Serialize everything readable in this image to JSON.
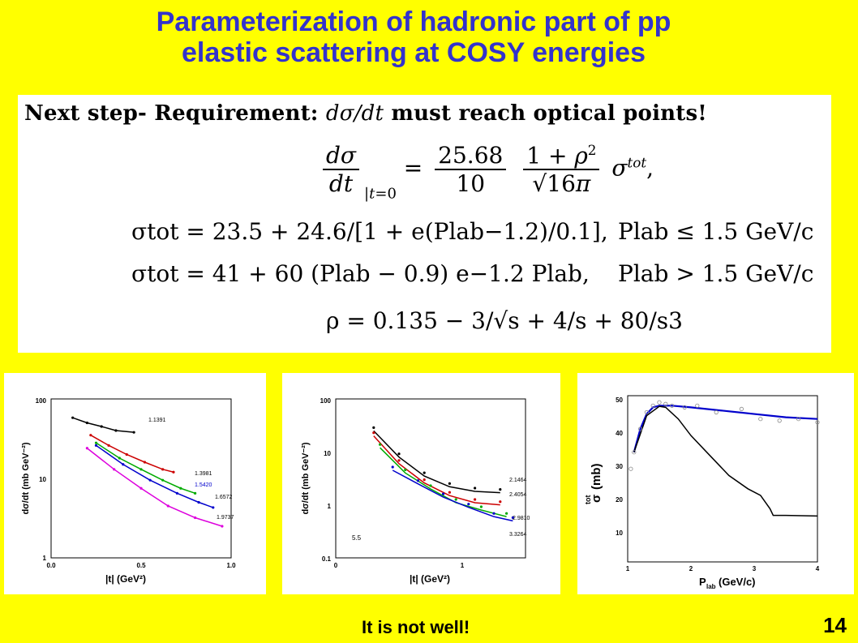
{
  "title": {
    "line1": "Parameterization of hadronic part of pp",
    "line2": "elastic scattering at COSY energies"
  },
  "requirement": {
    "prefix": "Next step- Requirement: ",
    "math": "dσ/dt",
    "suffix": " must reach optical points!"
  },
  "formulas": {
    "f1_const": "25.68",
    "f1_den": "10",
    "f2_text": "σtot = 23.5 + 24.6/[1 + e(Plab−1.2)/0.1],",
    "f2_cond": "Plab ≤ 1.5 GeV/c",
    "f3_text": "σtot = 41 + 60 (Plab − 0.9) e−1.2 Plab,",
    "f3_cond": "Plab > 1.5 GeV/c",
    "f4_text": "ρ = 0.135 − 3/√s + 4/s + 80/s3"
  },
  "panel1": {
    "ylabel": "dσ/dt (mb GeV⁻²)",
    "xlabel": "|t| (GeV²)",
    "yticks": [
      "100",
      "10",
      "1"
    ],
    "xticks": [
      "0.0",
      "0.5",
      "1.0"
    ],
    "labels": [
      "1.1391",
      "1.3981",
      "1.5420",
      "1.6572",
      "1.9737"
    ]
  },
  "panel2": {
    "ylabel": "dσ/dt (mb GeV⁻²)",
    "xlabel": "|t| (GeV²)",
    "yticks": [
      "100",
      "10",
      "1",
      "0.1"
    ],
    "xticks": [
      "0",
      "1"
    ],
    "labels": [
      "2.1464",
      "2.4054",
      "2.9810",
      "3.3264"
    ],
    "note": "5.5"
  },
  "panel3": {
    "ylabel": "σ",
    "ylabel_sup": "tot",
    "ylabel_unit": "(mb)",
    "xlabel": "P",
    "xlabel_sub": "lab",
    "xlabel_unit": "(GeV/c)",
    "yticks": [
      "50",
      "40",
      "30",
      "20",
      "10"
    ],
    "xticks": [
      "1",
      "2",
      "3",
      "4"
    ]
  },
  "footer": "It is not well!",
  "page_number": "14",
  "colors": {
    "background": "#ffff00",
    "title": "#3333cc"
  },
  "chart_data": [
    {
      "type": "scatter",
      "title": "",
      "xlabel": "|t| (GeV²)",
      "ylabel": "dσ/dt (mb GeV⁻²)",
      "xlim": [
        0.0,
        1.0
      ],
      "ylim": [
        1,
        100
      ],
      "log_y": true,
      "series": [
        {
          "name": "1.1391",
          "color": "#000000",
          "x": [
            0.12,
            0.2,
            0.28,
            0.36,
            0.46
          ],
          "y": [
            58,
            50,
            45,
            40,
            38
          ]
        },
        {
          "name": "1.3981",
          "color": "#cc0000",
          "x": [
            0.22,
            0.32,
            0.42,
            0.52,
            0.62,
            0.68
          ],
          "y": [
            35,
            26,
            20,
            16,
            13,
            12
          ]
        },
        {
          "name": "1.5420",
          "color": "#00aa00",
          "x": [
            0.25,
            0.38,
            0.5,
            0.62,
            0.72,
            0.8
          ],
          "y": [
            28,
            18,
            13,
            9.5,
            7.5,
            6.5
          ]
        },
        {
          "name": "1.6572",
          "color": "#0000cc",
          "x": [
            0.25,
            0.4,
            0.55,
            0.7,
            0.82,
            0.9
          ],
          "y": [
            26,
            15,
            9.5,
            6.5,
            5,
            4.3
          ]
        },
        {
          "name": "1.9737",
          "color": "#dd00dd",
          "x": [
            0.2,
            0.35,
            0.5,
            0.65,
            0.8,
            0.95
          ],
          "y": [
            24,
            13,
            7.5,
            4.5,
            3.2,
            2.5
          ]
        }
      ]
    },
    {
      "type": "scatter",
      "title": "",
      "xlabel": "|t| (GeV²)",
      "ylabel": "dσ/dt (mb GeV⁻²)",
      "xlim": [
        0,
        1.5
      ],
      "ylim": [
        0.1,
        100
      ],
      "log_y": true,
      "series": [
        {
          "name": "2.1464",
          "color": "#000000",
          "x": [
            0.3,
            0.5,
            0.7,
            0.9,
            1.1,
            1.3
          ],
          "y": [
            25,
            8,
            3.5,
            2.2,
            1.8,
            1.7
          ]
        },
        {
          "name": "2.4054",
          "color": "#cc0000",
          "x": [
            0.3,
            0.5,
            0.7,
            0.9,
            1.1,
            1.3
          ],
          "y": [
            20,
            6,
            2.6,
            1.5,
            1.1,
            1.0
          ]
        },
        {
          "name": "2.9810",
          "color": "#00aa00",
          "x": [
            0.35,
            0.55,
            0.75,
            0.95,
            1.15,
            1.35
          ],
          "y": [
            12,
            4,
            2,
            1.1,
            0.8,
            0.6
          ]
        },
        {
          "name": "3.3264",
          "color": "#0000cc",
          "x": [
            0.45,
            0.65,
            0.85,
            1.05,
            1.25,
            1.4
          ],
          "y": [
            4.5,
            2.5,
            1.4,
            0.9,
            0.6,
            0.5
          ]
        }
      ]
    },
    {
      "type": "line",
      "title": "",
      "xlabel": "Plab(GeV/c)",
      "ylabel": "σtot (mb)",
      "xlim": [
        1,
        4
      ],
      "ylim": [
        0,
        50
      ],
      "series": [
        {
          "name": "",
          "color": "#0000cc",
          "x": [
            1.1,
            1.2,
            1.3,
            1.4,
            1.5,
            1.7,
            2.0,
            2.5,
            3.0,
            3.5,
            4.0
          ],
          "y": [
            33,
            40,
            44.5,
            46.5,
            47,
            47,
            46.5,
            45.5,
            44.5,
            43.5,
            43
          ]
        },
        {
          "name": "",
          "color": "#000000",
          "x": [
            1.1,
            1.3,
            1.5,
            1.6,
            1.8,
            2.0,
            2.3,
            2.6,
            2.9,
            3.1,
            3.25,
            3.3,
            3.5,
            4.0
          ],
          "y": [
            33,
            44,
            46.8,
            46.5,
            43,
            38,
            32,
            26,
            22,
            20,
            16,
            14,
            14,
            13.8
          ]
        },
        {
          "name": "",
          "color": "#888888",
          "x": [
            1.05,
            1.1,
            1.2,
            1.3,
            1.4,
            1.5,
            1.6,
            1.7,
            1.9,
            2.1,
            2.4,
            2.8,
            3.1,
            3.4,
            3.7,
            4.0
          ],
          "y": [
            28,
            33,
            40,
            45,
            47,
            48,
            47.5,
            47,
            46.5,
            47,
            45,
            46,
            43,
            42.5,
            43,
            42
          ]
        }
      ]
    }
  ]
}
